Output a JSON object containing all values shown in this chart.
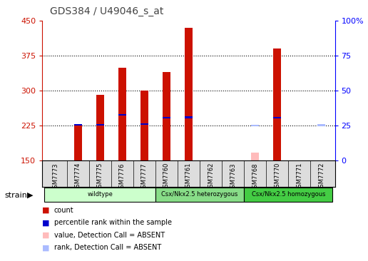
{
  "title": "GDS384 / U49046_s_at",
  "samples": [
    "GSM7773",
    "GSM7774",
    "GSM7775",
    "GSM7776",
    "GSM7777",
    "GSM7760",
    "GSM7761",
    "GSM7762",
    "GSM7763",
    "GSM7768",
    "GSM7770",
    "GSM7771",
    "GSM7772"
  ],
  "count_values": [
    150,
    228,
    291,
    350,
    301,
    340,
    435,
    150,
    150,
    167,
    390,
    150,
    150
  ],
  "count_absent": [
    false,
    false,
    false,
    false,
    false,
    false,
    false,
    false,
    false,
    true,
    false,
    false,
    true
  ],
  "percentile_values": [
    150,
    227,
    227,
    248,
    228,
    242,
    243,
    150,
    150,
    225,
    242,
    150,
    226
  ],
  "percentile_absent": [
    false,
    false,
    false,
    false,
    false,
    false,
    false,
    false,
    false,
    true,
    false,
    false,
    true
  ],
  "ylim": [
    150,
    450
  ],
  "yticks": [
    150,
    225,
    300,
    375,
    450
  ],
  "ytick_labels": [
    "150",
    "225",
    "300",
    "375",
    "450"
  ],
  "y2ticks": [
    0,
    25,
    50,
    75,
    100
  ],
  "y2tick_labels": [
    "0",
    "25",
    "50",
    "75",
    "100%"
  ],
  "groups": [
    {
      "label": "wildtype",
      "start": 0,
      "end": 4,
      "color": "#ccffcc"
    },
    {
      "label": "Csx/Nkx2.5 heterozygous",
      "start": 5,
      "end": 8,
      "color": "#99ee99"
    },
    {
      "label": "Csx/Nkx2.5 homozygous",
      "start": 9,
      "end": 12,
      "color": "#44cc44"
    }
  ],
  "bar_color_present": "#cc1100",
  "bar_color_absent": "#ffbbbb",
  "rank_color_present": "#0000cc",
  "rank_color_absent": "#aabbff",
  "bar_width": 0.35,
  "legend_items": [
    {
      "label": "count",
      "color": "#cc1100"
    },
    {
      "label": "percentile rank within the sample",
      "color": "#0000cc"
    },
    {
      "label": "value, Detection Call = ABSENT",
      "color": "#ffbbbb"
    },
    {
      "label": "rank, Detection Call = ABSENT",
      "color": "#aabbff"
    }
  ]
}
